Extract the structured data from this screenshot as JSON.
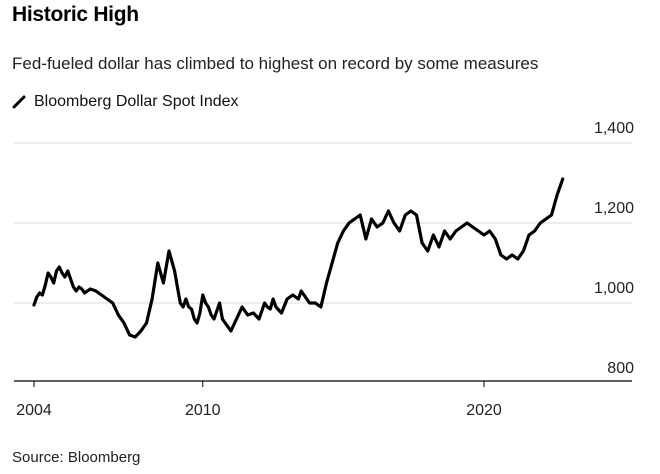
{
  "chart_data": {
    "type": "line",
    "title": "Historic High",
    "subtitle": "Fed-fueled dollar has climbed to highest on record by some measures",
    "source": "Source: Bloomberg",
    "series": [
      {
        "name": "Bloomberg Dollar Spot Index",
        "color": "#000000",
        "x": [
          2004.0,
          2004.1,
          2004.2,
          2004.3,
          2004.4,
          2004.5,
          2004.6,
          2004.7,
          2004.8,
          2004.9,
          2005.0,
          2005.1,
          2005.2,
          2005.3,
          2005.4,
          2005.5,
          2005.6,
          2005.7,
          2005.8,
          2005.9,
          2006.0,
          2006.2,
          2006.4,
          2006.6,
          2006.8,
          2007.0,
          2007.2,
          2007.4,
          2007.6,
          2007.8,
          2008.0,
          2008.2,
          2008.4,
          2008.6,
          2008.8,
          2009.0,
          2009.1,
          2009.2,
          2009.3,
          2009.4,
          2009.5,
          2009.6,
          2009.7,
          2009.8,
          2009.9,
          2010.0,
          2010.1,
          2010.2,
          2010.3,
          2010.4,
          2010.5,
          2010.6,
          2010.7,
          2010.8,
          2011.0,
          2011.2,
          2011.4,
          2011.6,
          2011.8,
          2012.0,
          2012.1,
          2012.2,
          2012.3,
          2012.4,
          2012.5,
          2012.6,
          2012.8,
          2013.0,
          2013.2,
          2013.4,
          2013.5,
          2013.6,
          2013.8,
          2014.0,
          2014.2,
          2014.4,
          2014.6,
          2014.8,
          2015.0,
          2015.2,
          2015.4,
          2015.6,
          2015.8,
          2016.0,
          2016.2,
          2016.4,
          2016.6,
          2016.8,
          2017.0,
          2017.2,
          2017.4,
          2017.6,
          2017.8,
          2018.0,
          2018.2,
          2018.4,
          2018.6,
          2018.8,
          2019.0,
          2019.2,
          2019.4,
          2019.6,
          2019.8,
          2020.0,
          2020.2,
          2020.4,
          2020.6,
          2020.8,
          2021.0,
          2021.2,
          2021.4,
          2021.6,
          2021.8,
          2022.0,
          2022.2,
          2022.4,
          2022.6,
          2022.8
        ],
        "values": [
          995,
          1015,
          1025,
          1020,
          1045,
          1075,
          1065,
          1050,
          1080,
          1090,
          1075,
          1065,
          1080,
          1060,
          1040,
          1030,
          1040,
          1035,
          1025,
          1030,
          1035,
          1030,
          1020,
          1010,
          1000,
          970,
          950,
          920,
          915,
          930,
          950,
          1010,
          1100,
          1050,
          1130,
          1080,
          1040,
          1000,
          990,
          1010,
          990,
          985,
          960,
          950,
          975,
          1020,
          1000,
          990,
          970,
          960,
          980,
          1000,
          960,
          950,
          930,
          960,
          990,
          970,
          975,
          960,
          980,
          1000,
          990,
          985,
          1010,
          990,
          975,
          1010,
          1020,
          1010,
          1030,
          1020,
          1000,
          1000,
          990,
          1050,
          1100,
          1150,
          1180,
          1200,
          1210,
          1220,
          1160,
          1210,
          1190,
          1200,
          1230,
          1200,
          1180,
          1220,
          1230,
          1220,
          1150,
          1130,
          1170,
          1140,
          1180,
          1160,
          1180,
          1190,
          1200,
          1190,
          1180,
          1170,
          1180,
          1160,
          1120,
          1110,
          1120,
          1110,
          1130,
          1170,
          1180,
          1200,
          1210,
          1220,
          1270,
          1310
        ]
      }
    ],
    "xlim": [
      2003.4,
      2023.4
    ],
    "ylim": [
      820,
      1400
    ],
    "x_ticks": [
      2004,
      2010,
      2020
    ],
    "x_tick_labels": [
      "2004",
      "2010",
      "2020"
    ],
    "y_ticks": [
      800,
      1000,
      1200,
      1400
    ],
    "y_tick_labels": [
      "800",
      "1,000",
      "1,200",
      "1,400"
    ],
    "grid": "horizontal",
    "legend_position": "top-left"
  }
}
